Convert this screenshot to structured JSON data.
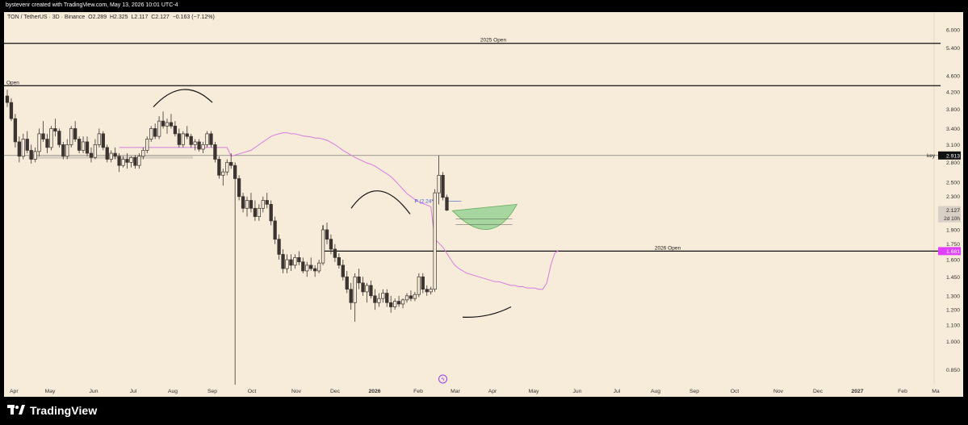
{
  "header": {
    "credit": "bystevenr created with TradingView.com, May 13, 2026 10:01 UTC-4"
  },
  "legend": {
    "symbol": "TON / TetherUS · 3D · Binance",
    "open": "O2.289",
    "high": "H2.325",
    "low": "L2.117",
    "close": "C2.127",
    "change": "−0.163 (−7.12%)"
  },
  "footer": {
    "brand": "TradingView"
  },
  "colors": {
    "background": "#f7ecd9",
    "candle_up": "#f7ecd9",
    "candle_down": "#3b3430",
    "ma_line": "#d67ce0",
    "target_fill": "#9fd49a",
    "target_stroke": "#5aa852",
    "key_label_bg": "#111111",
    "open2026_label_bg": "#e040fb"
  },
  "chart_data": {
    "type": "candlestick",
    "y_scale": "log",
    "ylim": [
      0.78,
      6.4
    ],
    "y_ticks": [
      "6.000",
      "5.400",
      "4.600",
      "4.200",
      "3.800",
      "3.400",
      "3.100",
      "2.800",
      "2.500",
      "2.300",
      "2.100",
      "1.900",
      "1.750",
      "1.600",
      "1.450",
      "1.300",
      "1.200",
      "1.100",
      "1.000",
      "0.850"
    ],
    "x_ticks": [
      "Apr",
      "May",
      "Jun",
      "Jul",
      "Aug",
      "Sep",
      "Oct",
      "Nov",
      "Dec",
      "2026",
      "Feb",
      "Mar",
      "Apr",
      "May",
      "Jun",
      "Jul",
      "Aug",
      "Sep",
      "Oct",
      "Nov",
      "Dec",
      "2027",
      "Feb",
      "Ma"
    ],
    "bold_x_ticks": [
      "2026",
      "2027"
    ],
    "horizontal_levels": [
      {
        "name": "2025 Open",
        "value": 5.55
      },
      {
        "name": "Open",
        "value": 4.35
      },
      {
        "name": "key",
        "value": 2.913
      },
      {
        "name": "2026 Open",
        "value": 1.681
      }
    ],
    "price_labels": [
      {
        "label": "2.913",
        "value": 2.913
      },
      {
        "label": "2.127",
        "value": 2.127,
        "countdown": "2d 10h"
      },
      {
        "label": "1.681",
        "value": 1.681
      }
    ],
    "annotation": {
      "label": "P (2.24*)",
      "value": 2.24
    },
    "candles": [
      [
        4.1,
        4.25,
        3.85,
        3.95
      ],
      [
        3.95,
        4.05,
        3.55,
        3.6
      ],
      [
        3.6,
        3.7,
        3.05,
        3.15
      ],
      [
        3.15,
        3.25,
        2.8,
        2.9
      ],
      [
        2.9,
        3.3,
        2.85,
        3.2
      ],
      [
        3.2,
        3.35,
        2.95,
        3.0
      ],
      [
        3.0,
        3.1,
        2.78,
        2.85
      ],
      [
        2.85,
        3.05,
        2.8,
        2.98
      ],
      [
        2.98,
        3.4,
        2.9,
        3.3
      ],
      [
        3.3,
        3.55,
        3.15,
        3.2
      ],
      [
        3.2,
        3.3,
        2.95,
        3.05
      ],
      [
        3.05,
        3.45,
        3.0,
        3.4
      ],
      [
        3.4,
        3.6,
        3.25,
        3.35
      ],
      [
        3.35,
        3.4,
        3.05,
        3.1
      ],
      [
        3.1,
        3.15,
        2.85,
        2.9
      ],
      [
        2.9,
        3.2,
        2.85,
        3.1
      ],
      [
        3.1,
        3.45,
        3.05,
        3.4
      ],
      [
        3.4,
        3.55,
        3.15,
        3.2
      ],
      [
        3.2,
        3.25,
        2.95,
        3.0
      ],
      [
        3.0,
        3.25,
        2.95,
        3.15
      ],
      [
        3.15,
        3.25,
        2.9,
        2.95
      ],
      [
        2.95,
        3.05,
        2.8,
        2.88
      ],
      [
        2.88,
        3.2,
        2.85,
        3.1
      ],
      [
        3.1,
        3.4,
        3.05,
        3.3
      ],
      [
        3.3,
        3.35,
        3.0,
        3.05
      ],
      [
        3.05,
        3.1,
        2.8,
        2.85
      ],
      [
        2.85,
        3.0,
        2.8,
        2.95
      ],
      [
        2.95,
        3.05,
        2.85,
        2.9
      ],
      [
        2.9,
        2.95,
        2.65,
        2.75
      ],
      [
        2.75,
        2.9,
        2.72,
        2.85
      ],
      [
        2.85,
        2.95,
        2.7,
        2.8
      ],
      [
        2.8,
        2.9,
        2.72,
        2.88
      ],
      [
        2.88,
        2.92,
        2.7,
        2.75
      ],
      [
        2.75,
        2.95,
        2.7,
        2.9
      ],
      [
        2.9,
        3.05,
        2.85,
        3.0
      ],
      [
        3.0,
        3.25,
        2.95,
        3.2
      ],
      [
        3.2,
        3.45,
        3.15,
        3.4
      ],
      [
        3.4,
        3.5,
        3.2,
        3.25
      ],
      [
        3.25,
        3.65,
        3.2,
        3.55
      ],
      [
        3.55,
        3.75,
        3.4,
        3.45
      ],
      [
        3.45,
        3.6,
        3.3,
        3.52
      ],
      [
        3.52,
        3.7,
        3.4,
        3.45
      ],
      [
        3.45,
        3.55,
        3.25,
        3.3
      ],
      [
        3.3,
        3.4,
        3.05,
        3.1
      ],
      [
        3.1,
        3.35,
        3.05,
        3.3
      ],
      [
        3.3,
        3.45,
        3.2,
        3.25
      ],
      [
        3.25,
        3.3,
        3.05,
        3.1
      ],
      [
        3.1,
        3.2,
        3.0,
        3.15
      ],
      [
        3.15,
        3.2,
        2.98,
        3.02
      ],
      [
        3.02,
        3.15,
        2.95,
        3.1
      ],
      [
        3.1,
        3.35,
        3.05,
        3.3
      ],
      [
        3.3,
        3.35,
        3.05,
        3.1
      ],
      [
        3.1,
        3.15,
        2.8,
        2.85
      ],
      [
        2.85,
        2.9,
        2.55,
        2.6
      ],
      [
        2.6,
        2.7,
        2.45,
        2.65
      ],
      [
        2.65,
        2.85,
        2.6,
        2.8
      ],
      [
        2.8,
        2.95,
        2.7,
        2.75
      ],
      [
        2.75,
        2.8,
        0.78,
        2.55
      ],
      [
        2.55,
        2.6,
        2.25,
        2.3
      ],
      [
        2.3,
        2.35,
        2.1,
        2.15
      ],
      [
        2.15,
        2.3,
        2.05,
        2.25
      ],
      [
        2.25,
        2.35,
        2.1,
        2.15
      ],
      [
        2.15,
        2.25,
        2.0,
        2.05
      ],
      [
        2.05,
        2.2,
        2.0,
        2.15
      ],
      [
        2.15,
        2.3,
        2.1,
        2.25
      ],
      [
        2.25,
        2.35,
        2.15,
        2.2
      ],
      [
        2.2,
        2.25,
        1.95,
        2.0
      ],
      [
        2.0,
        2.05,
        1.75,
        1.8
      ],
      [
        1.8,
        1.85,
        1.6,
        1.65
      ],
      [
        1.65,
        1.7,
        1.48,
        1.52
      ],
      [
        1.52,
        1.65,
        1.48,
        1.6
      ],
      [
        1.6,
        1.65,
        1.5,
        1.55
      ],
      [
        1.55,
        1.65,
        1.52,
        1.62
      ],
      [
        1.62,
        1.68,
        1.55,
        1.58
      ],
      [
        1.58,
        1.62,
        1.48,
        1.5
      ],
      [
        1.5,
        1.58,
        1.45,
        1.55
      ],
      [
        1.55,
        1.62,
        1.5,
        1.52
      ],
      [
        1.52,
        1.55,
        1.45,
        1.5
      ],
      [
        1.5,
        1.6,
        1.48,
        1.57
      ],
      [
        1.57,
        1.95,
        1.55,
        1.9
      ],
      [
        1.9,
        1.98,
        1.75,
        1.8
      ],
      [
        1.8,
        1.85,
        1.65,
        1.7
      ],
      [
        1.7,
        1.75,
        1.58,
        1.62
      ],
      [
        1.62,
        1.66,
        1.52,
        1.55
      ],
      [
        1.55,
        1.6,
        1.42,
        1.45
      ],
      [
        1.45,
        1.5,
        1.32,
        1.35
      ],
      [
        1.35,
        1.4,
        1.2,
        1.25
      ],
      [
        1.25,
        1.48,
        1.12,
        1.45
      ],
      [
        1.45,
        1.52,
        1.35,
        1.4
      ],
      [
        1.4,
        1.45,
        1.3,
        1.33
      ],
      [
        1.33,
        1.4,
        1.25,
        1.38
      ],
      [
        1.38,
        1.42,
        1.28,
        1.3
      ],
      [
        1.3,
        1.35,
        1.2,
        1.25
      ],
      [
        1.25,
        1.32,
        1.22,
        1.28
      ],
      [
        1.28,
        1.35,
        1.25,
        1.32
      ],
      [
        1.32,
        1.35,
        1.22,
        1.25
      ],
      [
        1.25,
        1.3,
        1.18,
        1.22
      ],
      [
        1.22,
        1.28,
        1.2,
        1.26
      ],
      [
        1.26,
        1.3,
        1.22,
        1.24
      ],
      [
        1.24,
        1.28,
        1.21,
        1.27
      ],
      [
        1.27,
        1.32,
        1.25,
        1.3
      ],
      [
        1.3,
        1.34,
        1.26,
        1.28
      ],
      [
        1.28,
        1.33,
        1.26,
        1.31
      ],
      [
        1.31,
        1.48,
        1.29,
        1.45
      ],
      [
        1.45,
        1.48,
        1.32,
        1.35
      ],
      [
        1.35,
        1.38,
        1.3,
        1.33
      ],
      [
        1.33,
        1.37,
        1.31,
        1.35
      ],
      [
        1.35,
        2.4,
        1.33,
        2.35
      ],
      [
        2.35,
        2.913,
        2.2,
        2.6
      ],
      [
        2.6,
        2.65,
        2.25,
        2.289
      ],
      [
        2.289,
        2.325,
        2.117,
        2.127
      ]
    ],
    "ma": [
      3.05,
      3.05,
      3.05,
      3.05,
      3.05,
      3.05,
      3.05,
      3.05,
      3.05,
      3.05,
      3.05,
      3.05,
      3.05,
      3.05,
      3.05,
      3.05,
      3.05,
      3.05,
      3.05,
      3.05,
      3.05,
      3.05,
      3.05,
      3.05,
      3.05,
      3.05,
      3.05,
      3.05,
      2.9,
      2.92,
      2.94,
      2.96,
      2.98,
      3.0,
      3.05,
      3.1,
      3.15,
      3.2,
      3.25,
      3.28,
      3.3,
      3.32,
      3.32,
      3.3,
      3.3,
      3.28,
      3.26,
      3.25,
      3.24,
      3.22,
      3.22,
      3.2,
      3.18,
      3.14,
      3.1,
      3.05,
      3.0,
      2.96,
      2.92,
      2.88,
      2.85,
      2.82,
      2.79,
      2.77,
      2.74,
      2.7,
      2.66,
      2.62,
      2.58,
      2.52,
      2.46,
      2.4,
      2.34,
      2.3,
      2.26,
      2.23,
      2.21,
      2.19,
      2.17,
      1.8,
      1.76,
      1.72,
      1.66,
      1.6,
      1.55,
      1.52,
      1.5,
      1.48,
      1.47,
      1.46,
      1.45,
      1.44,
      1.43,
      1.42,
      1.41,
      1.41,
      1.4,
      1.39,
      1.38,
      1.38,
      1.37,
      1.37,
      1.36,
      1.36,
      1.36,
      1.35,
      1.35,
      1.4,
      1.55,
      1.66,
      1.69
    ]
  }
}
